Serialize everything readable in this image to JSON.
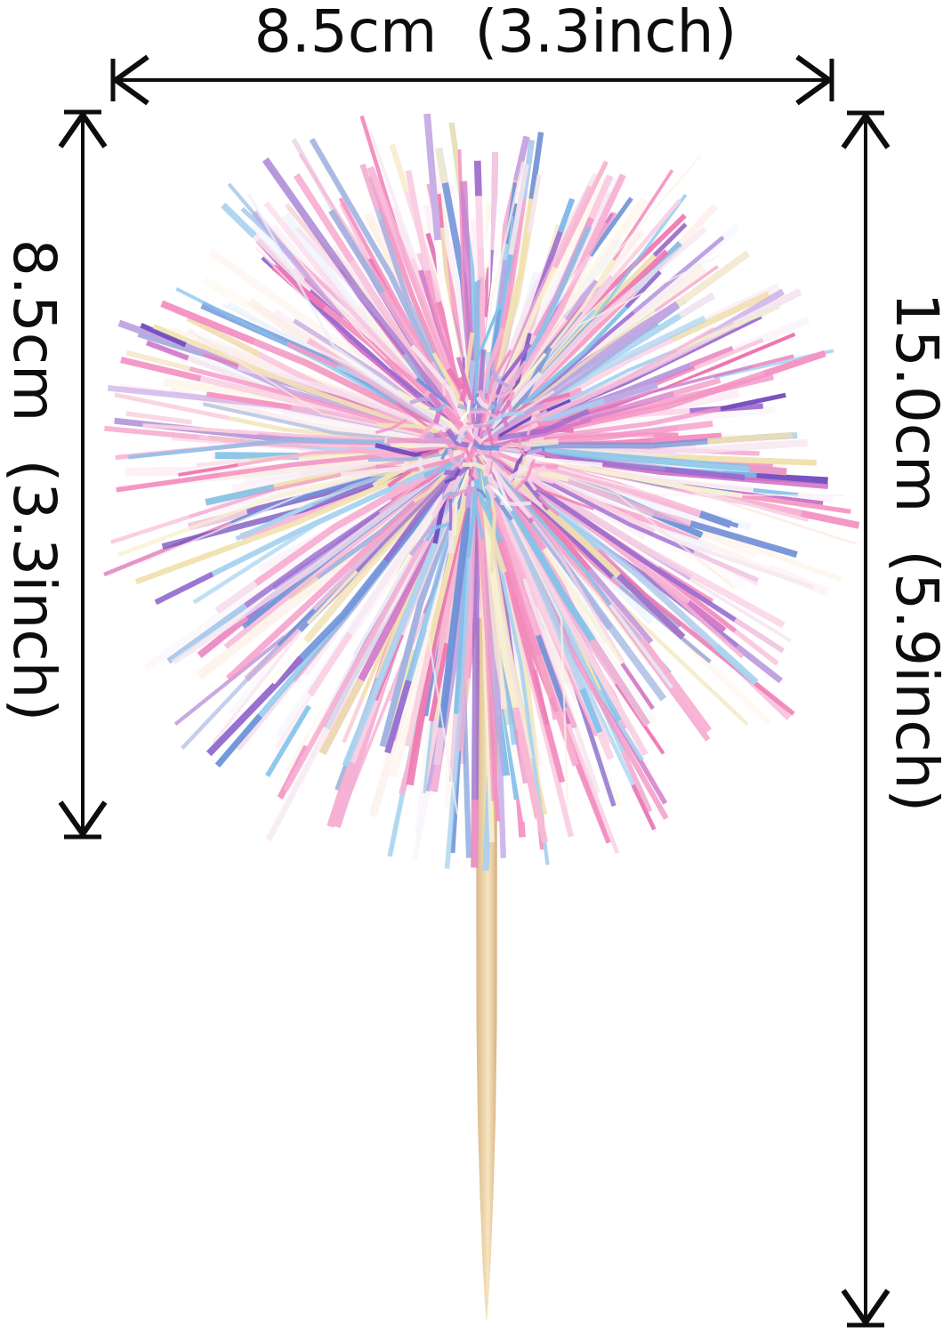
{
  "page": {
    "background": "#ffffff",
    "annotation_color": "#0d0d0d"
  },
  "dimensions": {
    "top": {
      "label": "8.5cm (3.3inch)",
      "meaning": "pom-pom width"
    },
    "left": {
      "label": "8.5cm (3.3inch)",
      "meaning": "pom-pom height"
    },
    "right": {
      "label": "15.0cm (5.9inch)",
      "meaning": "total pick height"
    }
  },
  "product": {
    "name": "iridescent tinsel pom-pom cocktail pick on wooden skewer",
    "palette": [
      {
        "color": "#f7b3d4",
        "weight": 15
      },
      {
        "color": "#f493c4",
        "weight": 13
      },
      {
        "color": "#ee76b0",
        "weight": 7
      },
      {
        "color": "#fad2e4",
        "weight": 12
      },
      {
        "color": "#f6e6f0",
        "weight": 8
      },
      {
        "color": "#f1e2b2",
        "weight": 8
      },
      {
        "color": "#f8f0d0",
        "weight": 4
      },
      {
        "color": "#82c2ea",
        "weight": 6
      },
      {
        "color": "#aad4f0",
        "weight": 4
      },
      {
        "color": "#6f92d8",
        "weight": 5
      },
      {
        "color": "#a2b4e0",
        "weight": 4
      },
      {
        "color": "#9a6cce",
        "weight": 6
      },
      {
        "color": "#6e49bd",
        "weight": 3
      },
      {
        "color": "#c2a6e2",
        "weight": 6
      },
      {
        "color": "#d277c8",
        "weight": 3
      },
      {
        "color": "#ffffff",
        "weight": 3
      }
    ],
    "pale_palette": [
      "#fce4f0",
      "#f8eef6",
      "#fdf2e2",
      "#e9f0fb",
      "#f6e7f2",
      "#fbe9dd"
    ],
    "stick": {
      "edge_dark": "#cfa97b",
      "dark": "#d8b88a",
      "mid": "#eed6ab",
      "light": "#f6e6c2",
      "shade": "#e2c194"
    }
  }
}
